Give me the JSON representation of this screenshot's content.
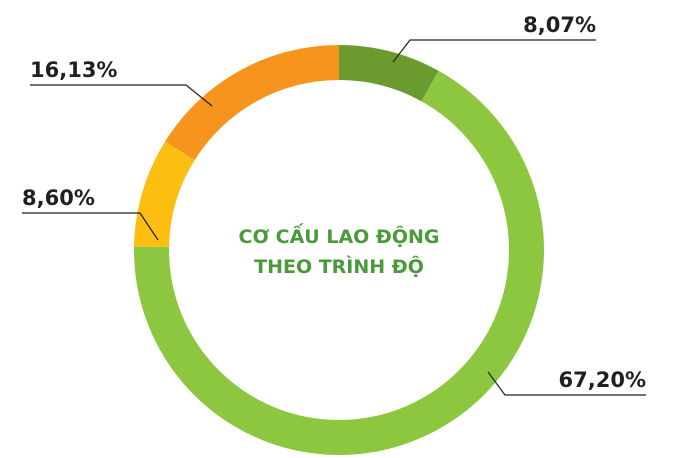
{
  "chart_data": {
    "type": "donut",
    "title": "CƠ CẤU LAO ĐỘNG THEO TRÌNH ĐỘ",
    "values": [
      8.07,
      67.2,
      8.6,
      16.13
    ],
    "value_labels": [
      "8,07%",
      "67,20%",
      "8,60%",
      "16,13%"
    ],
    "colors": [
      "#6b9b2f",
      "#8dc63f",
      "#fdbe12",
      "#f7941d"
    ]
  }
}
